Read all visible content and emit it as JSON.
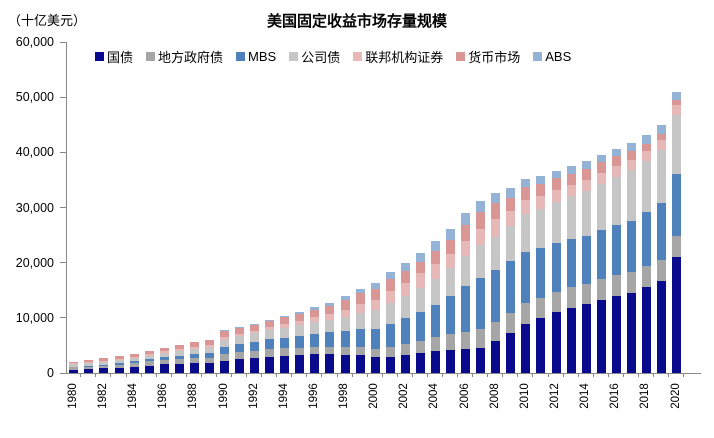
{
  "header": {
    "title": "美国固定收益市场存量规模",
    "unit_label": "（十亿美元）"
  },
  "colors": {
    "axis": "#888888",
    "text": "#000000",
    "background": "#ffffff"
  },
  "chart_data": {
    "type": "bar",
    "stacked": true,
    "title": "美国固定收益市场存量规模",
    "unit": "十亿美元",
    "xlabel": "",
    "ylabel": "（十亿美元）",
    "ylim": [
      0,
      60000
    ],
    "y_tick_interval": 10000,
    "y_tick_labels": [
      "0",
      "10,000",
      "20,000",
      "30,000",
      "40,000",
      "50,000",
      "60,000"
    ],
    "x_tick_step": 2,
    "grid": false,
    "legend_position": "top-left-inside",
    "x": [
      1980,
      1981,
      1982,
      1983,
      1984,
      1985,
      1986,
      1987,
      1988,
      1989,
      1990,
      1991,
      1992,
      1993,
      1994,
      1995,
      1996,
      1997,
      1998,
      1999,
      2000,
      2001,
      2002,
      2003,
      2004,
      2005,
      2006,
      2007,
      2008,
      2009,
      2010,
      2011,
      2012,
      2013,
      2014,
      2015,
      2016,
      2017,
      2018,
      2019,
      2020
    ],
    "series": [
      {
        "name": "国债",
        "key": "treasury",
        "color": "#0A0A8C",
        "values": [
          616,
          683,
          824,
          990,
          1177,
          1360,
          1564,
          1676,
          1802,
          1892,
          2196,
          2472,
          2754,
          2989,
          3126,
          3307,
          3459,
          3457,
          3356,
          3281,
          2952,
          2968,
          3205,
          3575,
          3945,
          4166,
          4323,
          4517,
          5774,
          7261,
          8853,
          9928,
          11046,
          11854,
          12505,
          13192,
          13908,
          14469,
          15608,
          16673,
          20973
        ]
      },
      {
        "name": "地方政府债",
        "key": "municipal",
        "color": "#A6A6A6",
        "values": [
          399,
          436,
          490,
          546,
          642,
          744,
          750,
          795,
          839,
          870,
          1184,
          1272,
          1303,
          1378,
          1342,
          1293,
          1296,
          1319,
          1403,
          1457,
          1481,
          1800,
          2000,
          2200,
          2600,
          2870,
          3150,
          3425,
          3517,
          3672,
          3772,
          3719,
          3714,
          3671,
          3652,
          3837,
          3837,
          3851,
          3818,
          3854,
          3946
        ]
      },
      {
        "name": "MBS",
        "key": "mbs",
        "color": "#4F81BD",
        "values": [
          111,
          127,
          177,
          244,
          289,
          372,
          534,
          672,
          750,
          876,
          1333,
          1464,
          1603,
          1725,
          1940,
          2148,
          2350,
          2574,
          2832,
          3211,
          3565,
          4127,
          4686,
          5239,
          5862,
          6998,
          8390,
          9372,
          9467,
          9352,
          9258,
          9075,
          8838,
          8720,
          8735,
          8894,
          9023,
          9304,
          9732,
          10331,
          11225
        ]
      },
      {
        "name": "公司债",
        "key": "corporate",
        "color": "#C6C6C6",
        "values": [
          458,
          486,
          503,
          540,
          572,
          651,
          776,
          858,
          933,
          986,
          1350,
          1454,
          1557,
          1675,
          1755,
          1900,
          2066,
          2296,
          2589,
          2953,
          3358,
          3836,
          4100,
          4462,
          4705,
          4965,
          5344,
          5825,
          5950,
          6300,
          6928,
          7100,
          7483,
          7756,
          8079,
          8412,
          8775,
          9108,
          9240,
          9600,
          10655
        ]
      },
      {
        "name": "联邦机构证券",
        "key": "federal-agency",
        "color": "#E6B9B8",
        "values": [
          160,
          190,
          205,
          230,
          263,
          293,
          307,
          341,
          382,
          412,
          434,
          443,
          484,
          571,
          739,
          845,
          926,
          1022,
          1300,
          1620,
          1854,
          2149,
          2293,
          2626,
          2701,
          2616,
          2651,
          2946,
          3247,
          2727,
          2538,
          2326,
          2095,
          2058,
          1994,
          1995,
          1972,
          1935,
          1841,
          1739,
          1704
        ]
      },
      {
        "name": "货币市场",
        "key": "money-market",
        "color": "#D99694",
        "values": [
          328,
          396,
          440,
          479,
          546,
          620,
          668,
          746,
          837,
          980,
          1157,
          1105,
          1061,
          1084,
          1177,
          1293,
          1393,
          1561,
          1741,
          1902,
          2100,
          2243,
          2137,
          2019,
          2227,
          2532,
          2965,
          3200,
          2900,
          2471,
          2400,
          2200,
          2150,
          2100,
          2050,
          1900,
          1750,
          1500,
          1250,
          1100,
          1023
        ]
      },
      {
        "name": "ABS",
        "key": "abs",
        "color": "#95B3D7",
        "values": [
          0,
          0,
          0,
          0,
          0,
          1,
          7,
          13,
          29,
          51,
          90,
          130,
          164,
          214,
          257,
          316,
          404,
          536,
          732,
          901,
          1072,
          1281,
          1543,
          1694,
          1828,
          1955,
          2130,
          1970,
          1829,
          1712,
          1508,
          1407,
          1280,
          1285,
          1349,
          1323,
          1397,
          1468,
          1677,
          1677,
          1472
        ]
      }
    ]
  }
}
